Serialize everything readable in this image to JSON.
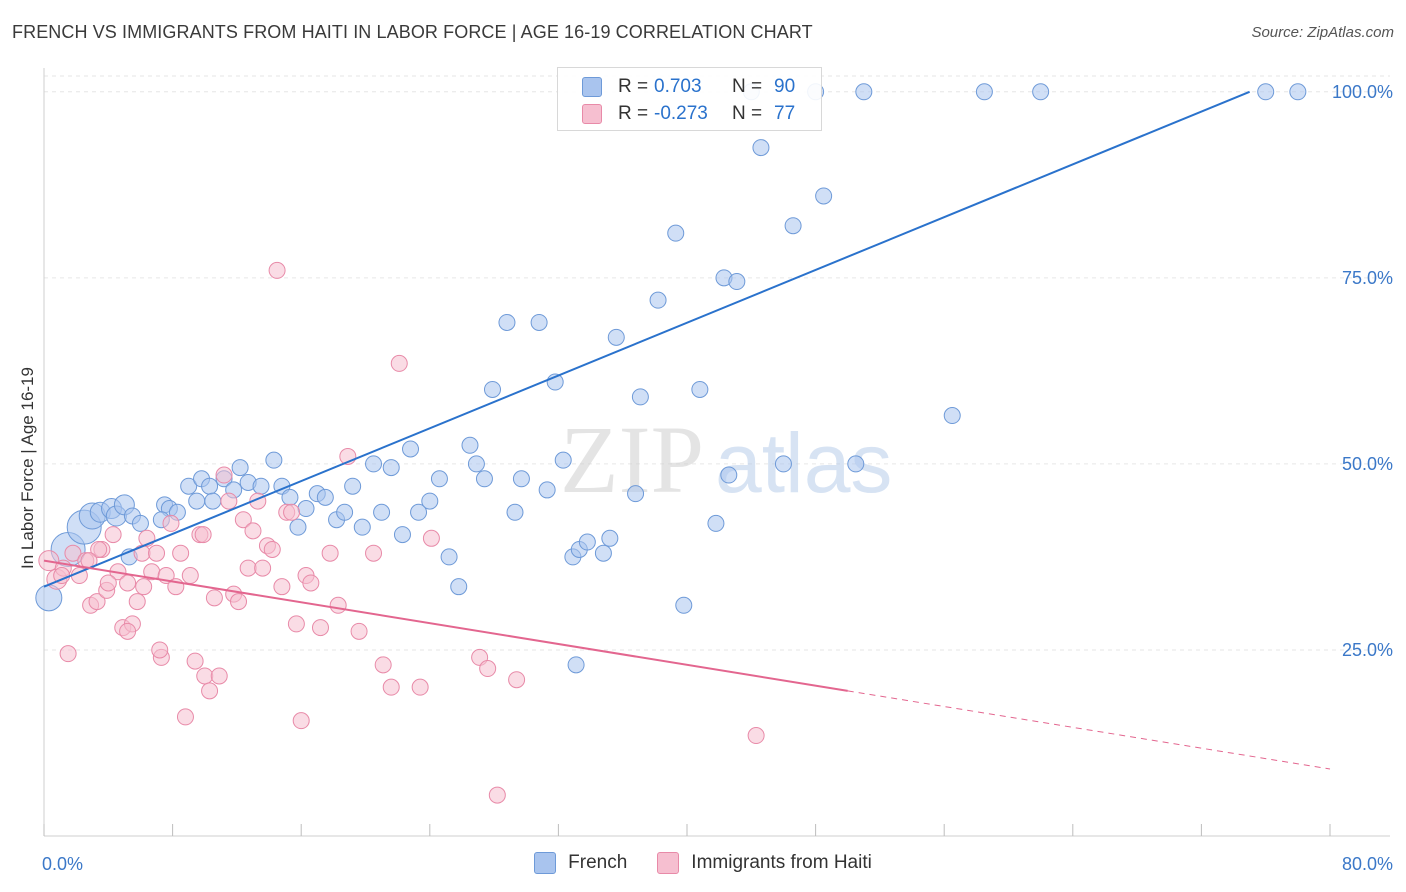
{
  "header": {
    "title": "FRENCH VS IMMIGRANTS FROM HAITI IN LABOR FORCE | AGE 16-19 CORRELATION CHART",
    "source": "Source: ZipAtlas.com"
  },
  "legend": {
    "r_label": "R =",
    "n_label": "N =",
    "rows": [
      {
        "r": "0.703",
        "n": "90"
      },
      {
        "r": "-0.273",
        "n": "77"
      }
    ]
  },
  "watermark": {
    "zip": "ZIP",
    "atlas": "atlas"
  },
  "colors": {
    "blue_fill": "#a9c4ee",
    "blue_stroke": "#6e9ad8",
    "blue_line": "#2a72cc",
    "pink_fill": "#f6bfd0",
    "pink_stroke": "#e88aa8",
    "pink_line": "#e3668f",
    "axis_text": "#3b78c8",
    "grid": "#e6e6e6"
  },
  "chart_data": {
    "type": "scatter",
    "title": "FRENCH VS IMMIGRANTS FROM HAITI IN LABOR FORCE | AGE 16-19 CORRELATION CHART",
    "xlabel": "",
    "ylabel": "In Labor Force | Age 16-19",
    "xlim": [
      0,
      80
    ],
    "ylim": [
      0,
      104
    ],
    "x_tick_labels": [
      "0.0%",
      "80.0%"
    ],
    "y_ticks": [
      25,
      50,
      75,
      100
    ],
    "y_tick_labels": [
      "25.0%",
      "50.0%",
      "75.0%",
      "100.0%"
    ],
    "grid": true,
    "legend_position": "top-center",
    "series": [
      {
        "name": "French",
        "color": "#a9c4ee",
        "trend": {
          "x": [
            0,
            75
          ],
          "y": [
            33.5,
            100
          ]
        },
        "points": [
          {
            "x": 0.3,
            "y": 32,
            "s": 3
          },
          {
            "x": 1.5,
            "y": 38.5,
            "s": 4
          },
          {
            "x": 2.5,
            "y": 41.5,
            "s": 4
          },
          {
            "x": 3,
            "y": 43,
            "s": 3
          },
          {
            "x": 3.5,
            "y": 43.5,
            "s": 2
          },
          {
            "x": 4.2,
            "y": 44,
            "s": 2
          },
          {
            "x": 4.5,
            "y": 43,
            "s": 2
          },
          {
            "x": 5,
            "y": 44.5,
            "s": 2
          },
          {
            "x": 5.5,
            "y": 43,
            "s": 1
          },
          {
            "x": 5.3,
            "y": 37.5,
            "s": 1
          },
          {
            "x": 6,
            "y": 42,
            "s": 1
          },
          {
            "x": 7.5,
            "y": 44.5,
            "s": 1
          },
          {
            "x": 7.8,
            "y": 44,
            "s": 1
          },
          {
            "x": 7.3,
            "y": 42.5,
            "s": 1
          },
          {
            "x": 8.3,
            "y": 43.5,
            "s": 1
          },
          {
            "x": 9.0,
            "y": 47,
            "s": 1
          },
          {
            "x": 9.5,
            "y": 45,
            "s": 1
          },
          {
            "x": 9.8,
            "y": 48,
            "s": 1
          },
          {
            "x": 10.3,
            "y": 47,
            "s": 1
          },
          {
            "x": 10.5,
            "y": 45,
            "s": 1
          },
          {
            "x": 11.2,
            "y": 48,
            "s": 1
          },
          {
            "x": 11.8,
            "y": 46.5,
            "s": 1
          },
          {
            "x": 12.2,
            "y": 49.5,
            "s": 1
          },
          {
            "x": 12.7,
            "y": 47.5,
            "s": 1
          },
          {
            "x": 13.5,
            "y": 47,
            "s": 1
          },
          {
            "x": 14.3,
            "y": 50.5,
            "s": 1
          },
          {
            "x": 14.8,
            "y": 47,
            "s": 1
          },
          {
            "x": 15.3,
            "y": 45.5,
            "s": 1
          },
          {
            "x": 15.8,
            "y": 41.5,
            "s": 1
          },
          {
            "x": 16.3,
            "y": 44,
            "s": 1
          },
          {
            "x": 17.0,
            "y": 46,
            "s": 1
          },
          {
            "x": 17.5,
            "y": 45.5,
            "s": 1
          },
          {
            "x": 18.2,
            "y": 42.5,
            "s": 1
          },
          {
            "x": 18.7,
            "y": 43.5,
            "s": 1
          },
          {
            "x": 19.2,
            "y": 47,
            "s": 1
          },
          {
            "x": 19.8,
            "y": 41.5,
            "s": 1
          },
          {
            "x": 20.5,
            "y": 50,
            "s": 1
          },
          {
            "x": 21.0,
            "y": 43.5,
            "s": 1
          },
          {
            "x": 21.6,
            "y": 49.5,
            "s": 1
          },
          {
            "x": 22.3,
            "y": 40.5,
            "s": 1
          },
          {
            "x": 22.8,
            "y": 52,
            "s": 1
          },
          {
            "x": 23.3,
            "y": 43.5,
            "s": 1
          },
          {
            "x": 24.0,
            "y": 45,
            "s": 1
          },
          {
            "x": 24.6,
            "y": 48,
            "s": 1
          },
          {
            "x": 25.2,
            "y": 37.5,
            "s": 1
          },
          {
            "x": 25.8,
            "y": 33.5,
            "s": 1
          },
          {
            "x": 26.5,
            "y": 52.5,
            "s": 1
          },
          {
            "x": 26.9,
            "y": 50,
            "s": 1
          },
          {
            "x": 27.4,
            "y": 48,
            "s": 1
          },
          {
            "x": 27.9,
            "y": 60,
            "s": 1
          },
          {
            "x": 28.8,
            "y": 69,
            "s": 1
          },
          {
            "x": 29.3,
            "y": 43.5,
            "s": 1
          },
          {
            "x": 29.7,
            "y": 48,
            "s": 1
          },
          {
            "x": 30.8,
            "y": 69,
            "s": 1
          },
          {
            "x": 31.3,
            "y": 46.5,
            "s": 1
          },
          {
            "x": 31.8,
            "y": 61,
            "s": 1
          },
          {
            "x": 32.3,
            "y": 50.5,
            "s": 1
          },
          {
            "x": 32.9,
            "y": 37.5,
            "s": 1
          },
          {
            "x": 33.3,
            "y": 38.5,
            "s": 1
          },
          {
            "x": 33.8,
            "y": 39.5,
            "s": 1
          },
          {
            "x": 34.8,
            "y": 38,
            "s": 1
          },
          {
            "x": 35.2,
            "y": 40,
            "s": 1
          },
          {
            "x": 35.6,
            "y": 67,
            "s": 1
          },
          {
            "x": 33.1,
            "y": 23,
            "s": 1
          },
          {
            "x": 36.8,
            "y": 46,
            "s": 1
          },
          {
            "x": 37.1,
            "y": 59,
            "s": 1
          },
          {
            "x": 38.2,
            "y": 72,
            "s": 1
          },
          {
            "x": 39.3,
            "y": 81,
            "s": 1
          },
          {
            "x": 39.8,
            "y": 31,
            "s": 1
          },
          {
            "x": 40.8,
            "y": 60,
            "s": 1
          },
          {
            "x": 41.8,
            "y": 42,
            "s": 1
          },
          {
            "x": 42.3,
            "y": 75,
            "s": 1
          },
          {
            "x": 42.6,
            "y": 48.5,
            "s": 1
          },
          {
            "x": 43.1,
            "y": 74.5,
            "s": 1
          },
          {
            "x": 44.0,
            "y": 100,
            "s": 1
          },
          {
            "x": 44.6,
            "y": 92.5,
            "s": 1
          },
          {
            "x": 46.0,
            "y": 50,
            "s": 1
          },
          {
            "x": 46.6,
            "y": 82,
            "s": 1
          },
          {
            "x": 48.0,
            "y": 100,
            "s": 1
          },
          {
            "x": 48.5,
            "y": 86,
            "s": 1
          },
          {
            "x": 50.5,
            "y": 50,
            "s": 1
          },
          {
            "x": 51.0,
            "y": 100,
            "s": 1
          },
          {
            "x": 56.5,
            "y": 56.5,
            "s": 1
          },
          {
            "x": 58.5,
            "y": 100,
            "s": 1
          },
          {
            "x": 62.0,
            "y": 100,
            "s": 1
          },
          {
            "x": 76.0,
            "y": 100,
            "s": 1
          },
          {
            "x": 78.0,
            "y": 100,
            "s": 1
          }
        ]
      },
      {
        "name": "Immigrants from Haiti",
        "color": "#f6bfd0",
        "trend": {
          "x": [
            0,
            50
          ],
          "y": [
            37,
            19.5
          ]
        },
        "trend_dashed": {
          "x": [
            50,
            80
          ],
          "y": [
            19.5,
            9
          ]
        },
        "points": [
          {
            "x": 0.3,
            "y": 37,
            "s": 2
          },
          {
            "x": 0.8,
            "y": 34.5,
            "s": 2
          },
          {
            "x": 1.2,
            "y": 36,
            "s": 1
          },
          {
            "x": 1.5,
            "y": 24.5,
            "s": 1
          },
          {
            "x": 1.8,
            "y": 38,
            "s": 1
          },
          {
            "x": 2.2,
            "y": 35,
            "s": 1
          },
          {
            "x": 2.6,
            "y": 37,
            "s": 1
          },
          {
            "x": 2.9,
            "y": 31,
            "s": 1
          },
          {
            "x": 3.3,
            "y": 31.5,
            "s": 1
          },
          {
            "x": 3.6,
            "y": 38.5,
            "s": 1
          },
          {
            "x": 3.9,
            "y": 33,
            "s": 1
          },
          {
            "x": 4.3,
            "y": 40.5,
            "s": 1
          },
          {
            "x": 4.6,
            "y": 35.5,
            "s": 1
          },
          {
            "x": 4.9,
            "y": 28,
            "s": 1
          },
          {
            "x": 5.2,
            "y": 34,
            "s": 1
          },
          {
            "x": 5.5,
            "y": 28.5,
            "s": 1
          },
          {
            "x": 5.8,
            "y": 31.5,
            "s": 1
          },
          {
            "x": 6.1,
            "y": 38,
            "s": 1
          },
          {
            "x": 6.4,
            "y": 40,
            "s": 1
          },
          {
            "x": 6.7,
            "y": 35.5,
            "s": 1
          },
          {
            "x": 7.0,
            "y": 38,
            "s": 1
          },
          {
            "x": 7.3,
            "y": 24,
            "s": 1
          },
          {
            "x": 7.6,
            "y": 35,
            "s": 1
          },
          {
            "x": 7.9,
            "y": 42,
            "s": 1
          },
          {
            "x": 8.2,
            "y": 33.5,
            "s": 1
          },
          {
            "x": 8.5,
            "y": 38,
            "s": 1
          },
          {
            "x": 8.8,
            "y": 16,
            "s": 1
          },
          {
            "x": 9.1,
            "y": 35,
            "s": 1
          },
          {
            "x": 9.4,
            "y": 23.5,
            "s": 1
          },
          {
            "x": 9.7,
            "y": 40.5,
            "s": 1
          },
          {
            "x": 10.0,
            "y": 21.5,
            "s": 1
          },
          {
            "x": 10.3,
            "y": 19.5,
            "s": 1
          },
          {
            "x": 10.6,
            "y": 32,
            "s": 1
          },
          {
            "x": 10.9,
            "y": 21.5,
            "s": 1
          },
          {
            "x": 11.2,
            "y": 48.5,
            "s": 1
          },
          {
            "x": 11.5,
            "y": 45,
            "s": 1
          },
          {
            "x": 11.8,
            "y": 32.5,
            "s": 1
          },
          {
            "x": 12.1,
            "y": 31.5,
            "s": 1
          },
          {
            "x": 12.4,
            "y": 42.5,
            "s": 1
          },
          {
            "x": 12.7,
            "y": 36,
            "s": 1
          },
          {
            "x": 13.0,
            "y": 41,
            "s": 1
          },
          {
            "x": 13.3,
            "y": 45,
            "s": 1
          },
          {
            "x": 13.6,
            "y": 36,
            "s": 1
          },
          {
            "x": 13.9,
            "y": 39,
            "s": 1
          },
          {
            "x": 14.2,
            "y": 38.5,
            "s": 1
          },
          {
            "x": 14.5,
            "y": 76,
            "s": 1
          },
          {
            "x": 14.8,
            "y": 33.5,
            "s": 1
          },
          {
            "x": 15.1,
            "y": 43.5,
            "s": 1
          },
          {
            "x": 15.4,
            "y": 43.5,
            "s": 1
          },
          {
            "x": 15.7,
            "y": 28.5,
            "s": 1
          },
          {
            "x": 16.0,
            "y": 15.5,
            "s": 1
          },
          {
            "x": 16.3,
            "y": 35,
            "s": 1
          },
          {
            "x": 16.6,
            "y": 34,
            "s": 1
          },
          {
            "x": 17.2,
            "y": 28,
            "s": 1
          },
          {
            "x": 17.8,
            "y": 38,
            "s": 1
          },
          {
            "x": 18.3,
            "y": 31,
            "s": 1
          },
          {
            "x": 18.9,
            "y": 51,
            "s": 1
          },
          {
            "x": 19.6,
            "y": 27.5,
            "s": 1
          },
          {
            "x": 5.2,
            "y": 27.5,
            "s": 1
          },
          {
            "x": 3.4,
            "y": 38.5,
            "s": 1
          },
          {
            "x": 7.2,
            "y": 25,
            "s": 1
          },
          {
            "x": 20.5,
            "y": 38,
            "s": 1
          },
          {
            "x": 21.1,
            "y": 23,
            "s": 1
          },
          {
            "x": 21.6,
            "y": 20,
            "s": 1
          },
          {
            "x": 22.1,
            "y": 63.5,
            "s": 1
          },
          {
            "x": 23.4,
            "y": 20,
            "s": 1
          },
          {
            "x": 24.1,
            "y": 40,
            "s": 1
          },
          {
            "x": 27.1,
            "y": 24,
            "s": 1
          },
          {
            "x": 27.6,
            "y": 22.5,
            "s": 1
          },
          {
            "x": 28.2,
            "y": 5.5,
            "s": 1
          },
          {
            "x": 29.4,
            "y": 21,
            "s": 1
          },
          {
            "x": 44.3,
            "y": 13.5,
            "s": 1
          },
          {
            "x": 9.9,
            "y": 40.5,
            "s": 1
          },
          {
            "x": 6.2,
            "y": 33.5,
            "s": 1
          },
          {
            "x": 2.8,
            "y": 37,
            "s": 1
          },
          {
            "x": 1.1,
            "y": 35,
            "s": 1
          },
          {
            "x": 4.0,
            "y": 34,
            "s": 1
          }
        ]
      }
    ]
  }
}
